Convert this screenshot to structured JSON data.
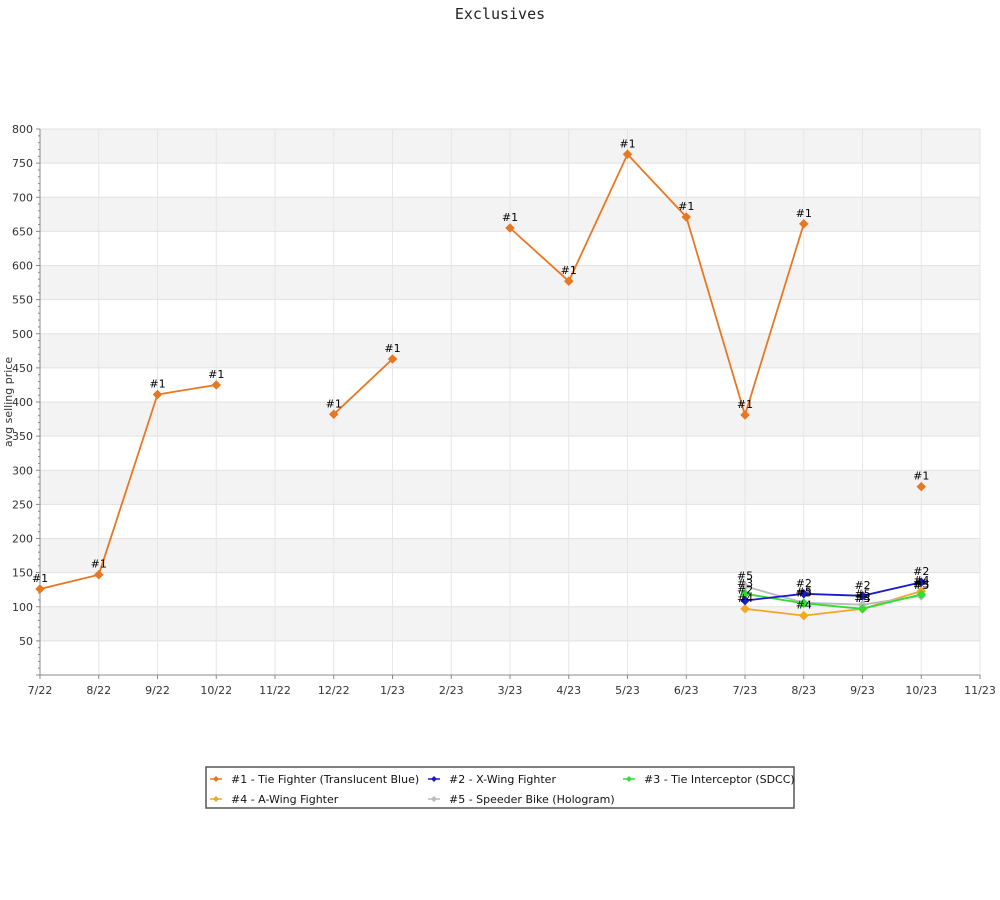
{
  "chart_data": {
    "type": "line",
    "title": "Exclusives",
    "xlabel": "",
    "ylabel": "avg selling price",
    "x_ticks": [
      "7/22",
      "8/22",
      "9/22",
      "10/22",
      "11/22",
      "12/22",
      "1/23",
      "2/23",
      "3/23",
      "4/23",
      "5/23",
      "6/23",
      "7/23",
      "8/23",
      "9/23",
      "10/23",
      "11/23"
    ],
    "xlim": [
      "7/22",
      "11/23"
    ],
    "ylim": [
      0,
      800
    ],
    "y_ticks": [
      50,
      100,
      150,
      200,
      250,
      300,
      350,
      400,
      450,
      500,
      550,
      600,
      650,
      700,
      750,
      800
    ],
    "grid": true,
    "legend_position": "bottom",
    "series": [
      {
        "name": "#1 - Tie Fighter (Translucent Blue)",
        "label": "#1",
        "color": "#e87722",
        "points": [
          {
            "x": "7/22",
            "y": 126
          },
          {
            "x": "8/22",
            "y": 147
          },
          {
            "x": "9/22",
            "y": 411
          },
          {
            "x": "10/22",
            "y": 425
          },
          {
            "x": "11/22",
            "y": null
          },
          {
            "x": "12/22",
            "y": 382
          },
          {
            "x": "1/23",
            "y": 463
          },
          {
            "x": "2/23",
            "y": null
          },
          {
            "x": "3/23",
            "y": 655
          },
          {
            "x": "4/23",
            "y": 577
          },
          {
            "x": "5/23",
            "y": 763
          },
          {
            "x": "6/23",
            "y": 671
          },
          {
            "x": "7/23",
            "y": 381
          },
          {
            "x": "8/23",
            "y": 661
          },
          {
            "x": "9/23",
            "y": null
          },
          {
            "x": "10/23",
            "y": 276
          }
        ]
      },
      {
        "name": "#2 - X-Wing Fighter",
        "label": "#2",
        "color": "#1a1acc",
        "points": [
          {
            "x": "7/23",
            "y": 109
          },
          {
            "x": "8/23",
            "y": 119
          },
          {
            "x": "9/23",
            "y": 116
          },
          {
            "x": "10/23",
            "y": 136
          }
        ]
      },
      {
        "name": "#3 - Tie Interceptor (SDCC)",
        "label": "#3",
        "color": "#33dd33",
        "points": [
          {
            "x": "7/23",
            "y": 119
          },
          {
            "x": "8/23",
            "y": 105
          },
          {
            "x": "9/23",
            "y": 97
          },
          {
            "x": "10/23",
            "y": 118
          }
        ]
      },
      {
        "name": "#4 - A-Wing Fighter",
        "label": "#4",
        "color": "#f5a623",
        "points": [
          {
            "x": "7/23",
            "y": 97
          },
          {
            "x": "8/23",
            "y": 87
          },
          {
            "x": "9/23",
            "y": 97
          },
          {
            "x": "10/23",
            "y": 123
          }
        ]
      },
      {
        "name": "#5 - Speeder Bike (Hologram)",
        "label": "#5",
        "color": "#bbbbbb",
        "points": [
          {
            "x": "7/23",
            "y": 130
          },
          {
            "x": "8/23",
            "y": 106
          },
          {
            "x": "9/23",
            "y": 103
          },
          {
            "x": "10/23",
            "y": 116
          }
        ]
      }
    ]
  }
}
